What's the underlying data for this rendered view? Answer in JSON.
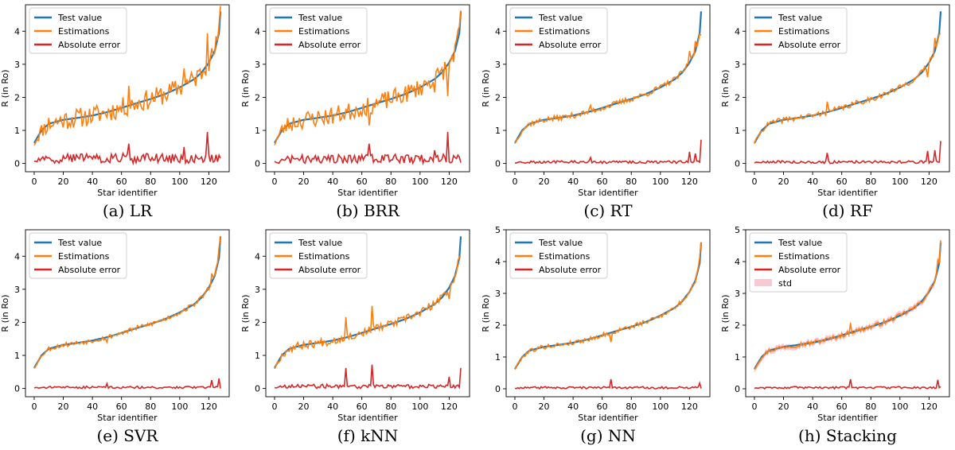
{
  "figure": {
    "colors": {
      "test": "#1f77b4",
      "est": "#ff7f0e",
      "err": "#d62728",
      "std": "#f4a5b4"
    }
  },
  "chart_data": [
    {
      "id": "lr",
      "caption": "(a) LR",
      "type": "line",
      "xlabel": "Star identifier",
      "ylabel": "R (in Ro)",
      "xlim": [
        -6,
        134
      ],
      "ylim": [
        -0.25,
        4.8
      ],
      "xticks": [
        0,
        20,
        40,
        60,
        80,
        100,
        120
      ],
      "yticks": [
        0,
        1,
        2,
        3,
        4
      ],
      "legend": [
        "Test value",
        "Estimations",
        "Absolute error"
      ],
      "noise": 0.22,
      "seed": 11,
      "spikes": [
        [
          65,
          0.6
        ],
        [
          119,
          0.95
        ],
        [
          103,
          0.5
        ]
      ],
      "std": false,
      "series": [
        {
          "name": "Test value",
          "x": [
            0,
            5,
            10,
            20,
            30,
            40,
            50,
            60,
            70,
            80,
            90,
            100,
            110,
            115,
            120,
            124,
            127,
            128
          ],
          "y": [
            0.62,
            1.0,
            1.2,
            1.32,
            1.38,
            1.45,
            1.55,
            1.68,
            1.82,
            1.95,
            2.1,
            2.3,
            2.55,
            2.75,
            3.05,
            3.4,
            3.95,
            4.6
          ]
        }
      ]
    },
    {
      "id": "brr",
      "caption": "(b) BRR",
      "type": "line",
      "xlabel": "Star identifier",
      "ylabel": "R (in Ro)",
      "xlim": [
        -6,
        134
      ],
      "ylim": [
        -0.25,
        4.8
      ],
      "xticks": [
        0,
        20,
        40,
        60,
        80,
        100,
        120
      ],
      "yticks": [
        0,
        1,
        2,
        3,
        4
      ],
      "legend": [
        "Test value",
        "Estimations",
        "Absolute error"
      ],
      "noise": 0.2,
      "seed": 23,
      "spikes": [
        [
          65,
          0.6
        ],
        [
          119,
          0.95
        ],
        [
          110,
          0.4
        ]
      ],
      "std": false,
      "series": [
        {
          "name": "Test value",
          "x": [
            0,
            5,
            10,
            20,
            30,
            40,
            50,
            60,
            70,
            80,
            90,
            100,
            110,
            115,
            120,
            124,
            127,
            128
          ],
          "y": [
            0.62,
            1.0,
            1.2,
            1.32,
            1.38,
            1.45,
            1.55,
            1.68,
            1.82,
            1.95,
            2.1,
            2.3,
            2.55,
            2.75,
            3.05,
            3.4,
            3.95,
            4.6
          ]
        }
      ]
    },
    {
      "id": "rt",
      "caption": "(c) RT",
      "type": "line",
      "xlabel": "Star identifier",
      "ylabel": "R (in Ro)",
      "xlim": [
        -6,
        134
      ],
      "ylim": [
        -0.25,
        4.8
      ],
      "xticks": [
        0,
        20,
        40,
        60,
        80,
        100,
        120
      ],
      "yticks": [
        0,
        1,
        2,
        3,
        4
      ],
      "legend": [
        "Test value",
        "Estimations",
        "Absolute error"
      ],
      "noise": 0.06,
      "seed": 37,
      "spikes": [
        [
          128,
          0.72
        ],
        [
          120,
          0.35
        ],
        [
          124,
          0.3
        ],
        [
          52,
          0.18
        ]
      ],
      "std": false,
      "series": [
        {
          "name": "Test value",
          "x": [
            0,
            5,
            10,
            20,
            30,
            40,
            50,
            60,
            70,
            80,
            90,
            100,
            110,
            115,
            120,
            124,
            127,
            128
          ],
          "y": [
            0.62,
            1.0,
            1.2,
            1.32,
            1.38,
            1.45,
            1.55,
            1.68,
            1.82,
            1.95,
            2.1,
            2.3,
            2.55,
            2.75,
            3.05,
            3.4,
            3.95,
            4.6
          ]
        }
      ]
    },
    {
      "id": "rf",
      "caption": "(d) RF",
      "type": "line",
      "xlabel": "Star identifier",
      "ylabel": "R (in Ro)",
      "xlim": [
        -6,
        134
      ],
      "ylim": [
        -0.25,
        4.8
      ],
      "xticks": [
        0,
        20,
        40,
        60,
        80,
        100,
        120
      ],
      "yticks": [
        0,
        1,
        2,
        3,
        4
      ],
      "legend": [
        "Test value",
        "Estimations",
        "Absolute error"
      ],
      "noise": 0.06,
      "seed": 41,
      "spikes": [
        [
          128,
          0.68
        ],
        [
          119,
          0.38
        ],
        [
          124,
          0.4
        ],
        [
          50,
          0.32
        ]
      ],
      "std": false,
      "series": [
        {
          "name": "Test value",
          "x": [
            0,
            5,
            10,
            20,
            30,
            40,
            50,
            60,
            70,
            80,
            90,
            100,
            110,
            115,
            120,
            124,
            127,
            128
          ],
          "y": [
            0.62,
            1.0,
            1.2,
            1.32,
            1.38,
            1.45,
            1.55,
            1.68,
            1.82,
            1.95,
            2.1,
            2.3,
            2.55,
            2.75,
            3.05,
            3.4,
            3.95,
            4.6
          ]
        }
      ]
    },
    {
      "id": "svr",
      "caption": "(e) SVR",
      "type": "line",
      "xlabel": "Star identifier",
      "ylabel": "R (in Ro)",
      "xlim": [
        -6,
        134
      ],
      "ylim": [
        -0.25,
        4.8
      ],
      "xticks": [
        0,
        20,
        40,
        60,
        80,
        100,
        120
      ],
      "yticks": [
        0,
        1,
        2,
        3,
        4
      ],
      "legend": [
        "Test value",
        "Estimations",
        "Absolute error"
      ],
      "noise": 0.05,
      "seed": 53,
      "spikes": [
        [
          127,
          0.3
        ],
        [
          122,
          0.25
        ],
        [
          50,
          0.15
        ]
      ],
      "std": false,
      "series": [
        {
          "name": "Test value",
          "x": [
            0,
            5,
            10,
            20,
            30,
            40,
            50,
            60,
            70,
            80,
            90,
            100,
            110,
            115,
            120,
            124,
            127,
            128
          ],
          "y": [
            0.62,
            1.0,
            1.2,
            1.32,
            1.38,
            1.45,
            1.55,
            1.68,
            1.82,
            1.95,
            2.1,
            2.3,
            2.55,
            2.75,
            3.05,
            3.4,
            3.95,
            4.6
          ]
        }
      ]
    },
    {
      "id": "knn",
      "caption": "(f) kNN",
      "type": "line",
      "xlabel": "Star identifier",
      "ylabel": "R (in Ro)",
      "xlim": [
        -6,
        134
      ],
      "ylim": [
        -0.25,
        4.8
      ],
      "xticks": [
        0,
        20,
        40,
        60,
        80,
        100,
        120
      ],
      "yticks": [
        0,
        1,
        2,
        3,
        4
      ],
      "legend": [
        "Test value",
        "Estimations",
        "Absolute error"
      ],
      "noise": 0.09,
      "seed": 67,
      "spikes": [
        [
          49,
          0.62
        ],
        [
          67,
          0.72
        ],
        [
          128,
          0.62
        ],
        [
          120,
          0.35
        ]
      ],
      "std": false,
      "series": [
        {
          "name": "Test value",
          "x": [
            0,
            5,
            10,
            20,
            30,
            40,
            50,
            60,
            70,
            80,
            90,
            100,
            110,
            115,
            120,
            124,
            127,
            128
          ],
          "y": [
            0.62,
            1.0,
            1.2,
            1.32,
            1.38,
            1.45,
            1.55,
            1.68,
            1.82,
            1.95,
            2.1,
            2.3,
            2.55,
            2.75,
            3.05,
            3.4,
            3.95,
            4.6
          ]
        }
      ]
    },
    {
      "id": "nn",
      "caption": "(g) NN",
      "type": "line",
      "xlabel": "Star identifier",
      "ylabel": "R (in Ro)",
      "xlim": [
        -6,
        134
      ],
      "ylim": [
        -0.25,
        5.0
      ],
      "xticks": [
        0,
        20,
        40,
        60,
        80,
        100,
        120
      ],
      "yticks": [
        0,
        1,
        2,
        3,
        4,
        5
      ],
      "legend": [
        "Test value",
        "Estimations",
        "Absolute error"
      ],
      "noise": 0.05,
      "seed": 79,
      "spikes": [
        [
          66,
          0.3
        ],
        [
          127,
          0.18
        ]
      ],
      "std": false,
      "series": [
        {
          "name": "Test value",
          "x": [
            0,
            5,
            10,
            20,
            30,
            40,
            50,
            60,
            70,
            80,
            90,
            100,
            110,
            115,
            120,
            124,
            127,
            128
          ],
          "y": [
            0.62,
            1.0,
            1.2,
            1.32,
            1.38,
            1.45,
            1.55,
            1.68,
            1.82,
            1.95,
            2.1,
            2.3,
            2.55,
            2.75,
            3.05,
            3.4,
            3.95,
            4.6
          ]
        }
      ]
    },
    {
      "id": "stacking",
      "caption": "(h) Stacking",
      "type": "line",
      "xlabel": "Star identifier",
      "ylabel": "R (in Ro)",
      "xlim": [
        -6,
        134
      ],
      "ylim": [
        -0.25,
        5.0
      ],
      "xticks": [
        0,
        20,
        40,
        60,
        80,
        100,
        120
      ],
      "yticks": [
        0,
        1,
        2,
        3,
        4,
        5
      ],
      "legend": [
        "Test value",
        "Estimations",
        "Absolute error",
        "std"
      ],
      "noise": 0.05,
      "seed": 97,
      "spikes": [
        [
          66,
          0.3
        ],
        [
          126,
          0.28
        ]
      ],
      "std": true,
      "series": [
        {
          "name": "Test value",
          "x": [
            0,
            5,
            10,
            20,
            30,
            40,
            50,
            60,
            70,
            80,
            90,
            100,
            110,
            115,
            120,
            124,
            127,
            128
          ],
          "y": [
            0.62,
            1.0,
            1.2,
            1.32,
            1.38,
            1.45,
            1.55,
            1.68,
            1.82,
            1.95,
            2.1,
            2.3,
            2.55,
            2.75,
            3.05,
            3.4,
            3.95,
            4.6
          ]
        }
      ]
    }
  ]
}
